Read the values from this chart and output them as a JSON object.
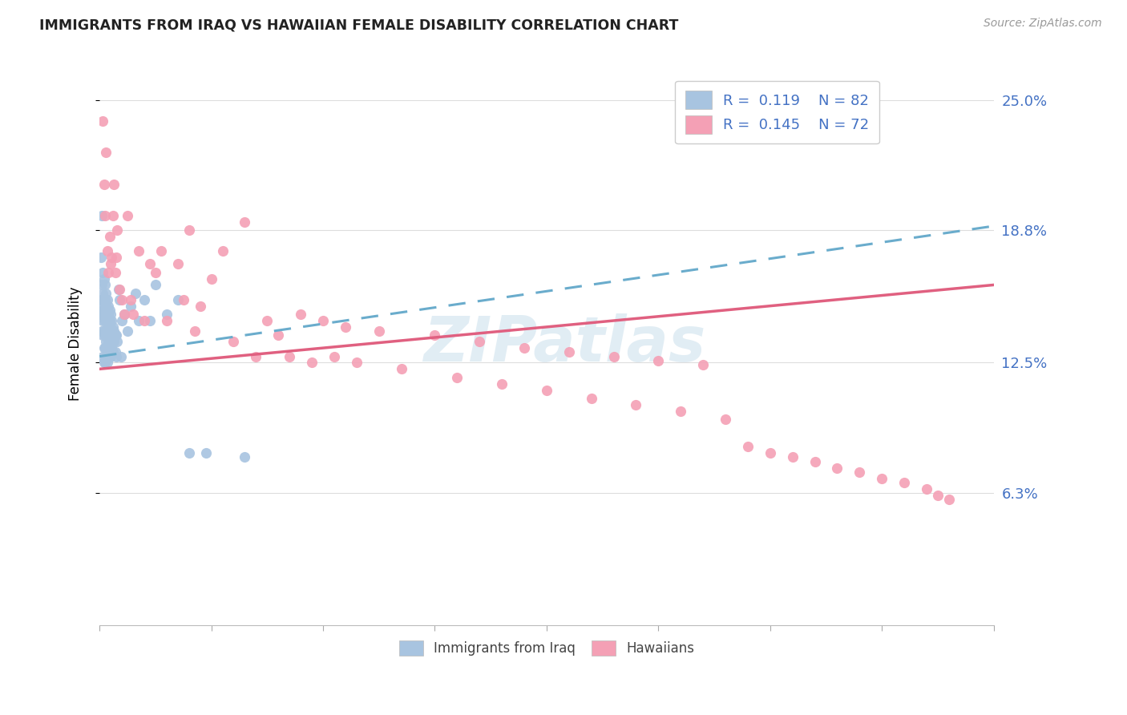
{
  "title": "IMMIGRANTS FROM IRAQ VS HAWAIIAN FEMALE DISABILITY CORRELATION CHART",
  "source": "Source: ZipAtlas.com",
  "ylabel": "Female Disability",
  "yticks": [
    "6.3%",
    "12.5%",
    "18.8%",
    "25.0%"
  ],
  "ytick_values": [
    0.063,
    0.125,
    0.188,
    0.25
  ],
  "xlim": [
    0.0,
    0.8
  ],
  "ylim": [
    0.0,
    0.268
  ],
  "legend_label1": "Immigrants from Iraq",
  "legend_label2": "Hawaiians",
  "color_blue": "#a8c4e0",
  "color_pink": "#f4a0b5",
  "color_blue_text": "#4472c4",
  "trendline_blue_color": "#6aaccc",
  "trendline_pink_color": "#e06080",
  "watermark": "ZIPatlas",
  "iraq_trendline_x0": 0.0,
  "iraq_trendline_y0": 0.128,
  "iraq_trendline_x1": 0.8,
  "iraq_trendline_y1": 0.19,
  "hawaii_trendline_x0": 0.0,
  "hawaii_trendline_y0": 0.122,
  "hawaii_trendline_x1": 0.8,
  "hawaii_trendline_y1": 0.162,
  "iraq_x": [
    0.001,
    0.001,
    0.001,
    0.002,
    0.002,
    0.002,
    0.002,
    0.002,
    0.003,
    0.003,
    0.003,
    0.003,
    0.003,
    0.003,
    0.004,
    0.004,
    0.004,
    0.004,
    0.004,
    0.004,
    0.005,
    0.005,
    0.005,
    0.005,
    0.005,
    0.005,
    0.005,
    0.006,
    0.006,
    0.006,
    0.006,
    0.006,
    0.006,
    0.007,
    0.007,
    0.007,
    0.007,
    0.007,
    0.007,
    0.008,
    0.008,
    0.008,
    0.008,
    0.008,
    0.009,
    0.009,
    0.009,
    0.009,
    0.01,
    0.01,
    0.01,
    0.01,
    0.011,
    0.011,
    0.011,
    0.012,
    0.012,
    0.012,
    0.013,
    0.013,
    0.014,
    0.014,
    0.015,
    0.015,
    0.016,
    0.017,
    0.018,
    0.019,
    0.02,
    0.022,
    0.025,
    0.028,
    0.032,
    0.035,
    0.04,
    0.045,
    0.05,
    0.06,
    0.07,
    0.08,
    0.095,
    0.13
  ],
  "iraq_y": [
    0.175,
    0.155,
    0.148,
    0.195,
    0.162,
    0.152,
    0.148,
    0.14,
    0.168,
    0.158,
    0.15,
    0.145,
    0.138,
    0.128,
    0.165,
    0.155,
    0.148,
    0.14,
    0.132,
    0.125,
    0.162,
    0.155,
    0.15,
    0.145,
    0.138,
    0.132,
    0.125,
    0.158,
    0.152,
    0.148,
    0.14,
    0.135,
    0.128,
    0.155,
    0.15,
    0.145,
    0.138,
    0.132,
    0.125,
    0.152,
    0.148,
    0.142,
    0.135,
    0.128,
    0.15,
    0.145,
    0.138,
    0.13,
    0.148,
    0.142,
    0.135,
    0.128,
    0.145,
    0.14,
    0.132,
    0.142,
    0.138,
    0.13,
    0.14,
    0.135,
    0.138,
    0.13,
    0.138,
    0.128,
    0.135,
    0.16,
    0.155,
    0.128,
    0.145,
    0.148,
    0.14,
    0.152,
    0.158,
    0.145,
    0.155,
    0.145,
    0.162,
    0.148,
    0.155,
    0.082,
    0.082,
    0.08
  ],
  "hawaii_x": [
    0.003,
    0.004,
    0.005,
    0.006,
    0.007,
    0.008,
    0.009,
    0.01,
    0.011,
    0.012,
    0.013,
    0.014,
    0.015,
    0.016,
    0.018,
    0.02,
    0.022,
    0.025,
    0.028,
    0.03,
    0.035,
    0.04,
    0.045,
    0.05,
    0.055,
    0.06,
    0.07,
    0.075,
    0.08,
    0.085,
    0.09,
    0.1,
    0.11,
    0.12,
    0.13,
    0.14,
    0.15,
    0.16,
    0.17,
    0.18,
    0.19,
    0.2,
    0.21,
    0.22,
    0.23,
    0.25,
    0.27,
    0.3,
    0.32,
    0.34,
    0.36,
    0.38,
    0.4,
    0.42,
    0.44,
    0.46,
    0.48,
    0.5,
    0.52,
    0.54,
    0.56,
    0.58,
    0.6,
    0.62,
    0.64,
    0.66,
    0.68,
    0.7,
    0.72,
    0.74,
    0.75,
    0.76
  ],
  "hawaii_y": [
    0.24,
    0.21,
    0.195,
    0.225,
    0.178,
    0.168,
    0.185,
    0.172,
    0.175,
    0.195,
    0.21,
    0.168,
    0.175,
    0.188,
    0.16,
    0.155,
    0.148,
    0.195,
    0.155,
    0.148,
    0.178,
    0.145,
    0.172,
    0.168,
    0.178,
    0.145,
    0.172,
    0.155,
    0.188,
    0.14,
    0.152,
    0.165,
    0.178,
    0.135,
    0.192,
    0.128,
    0.145,
    0.138,
    0.128,
    0.148,
    0.125,
    0.145,
    0.128,
    0.142,
    0.125,
    0.14,
    0.122,
    0.138,
    0.118,
    0.135,
    0.115,
    0.132,
    0.112,
    0.13,
    0.108,
    0.128,
    0.105,
    0.126,
    0.102,
    0.124,
    0.098,
    0.085,
    0.082,
    0.08,
    0.078,
    0.075,
    0.073,
    0.07,
    0.068,
    0.065,
    0.062,
    0.06
  ]
}
